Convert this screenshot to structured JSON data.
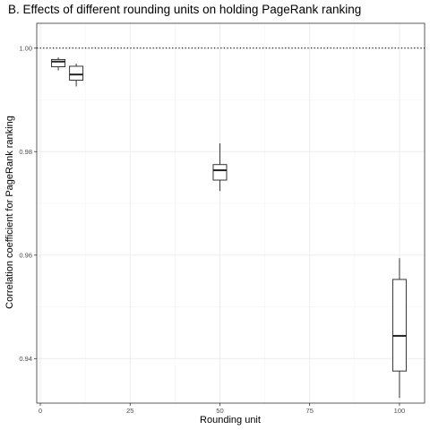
{
  "chart_data": {
    "type": "box",
    "title": "B. Effects of different rounding units on holding PageRank ranking",
    "xlabel": "Rounding unit",
    "ylabel": "Correlation coefficient for PageRank ranking",
    "xlim": [
      -1,
      107
    ],
    "ylim": [
      0.9314,
      1.0048
    ],
    "x_ticks": [
      0,
      25,
      50,
      75,
      100
    ],
    "y_ticks": [
      0.94,
      0.96,
      0.98,
      1.0
    ],
    "y_tick_labels": [
      "0.94",
      "0.96",
      "0.98",
      "1.00"
    ],
    "grid": true,
    "reference_line": {
      "y": 1.0,
      "style": "dotted"
    },
    "boxes": [
      {
        "x": 5,
        "whisker_low": 0.9957,
        "q1": 0.9964,
        "median": 0.9974,
        "q3": 0.9978,
        "whisker_high": 0.9982
      },
      {
        "x": 10,
        "whisker_low": 0.9926,
        "q1": 0.9938,
        "median": 0.9949,
        "q3": 0.9965,
        "whisker_high": 0.997
      },
      {
        "x": 50,
        "whisker_low": 0.9724,
        "q1": 0.9745,
        "median": 0.9764,
        "q3": 0.9775,
        "whisker_high": 0.9816
      },
      {
        "x": 100,
        "whisker_low": 0.9324,
        "q1": 0.9376,
        "median": 0.9444,
        "q3": 0.9553,
        "whisker_high": 0.9594
      }
    ]
  }
}
